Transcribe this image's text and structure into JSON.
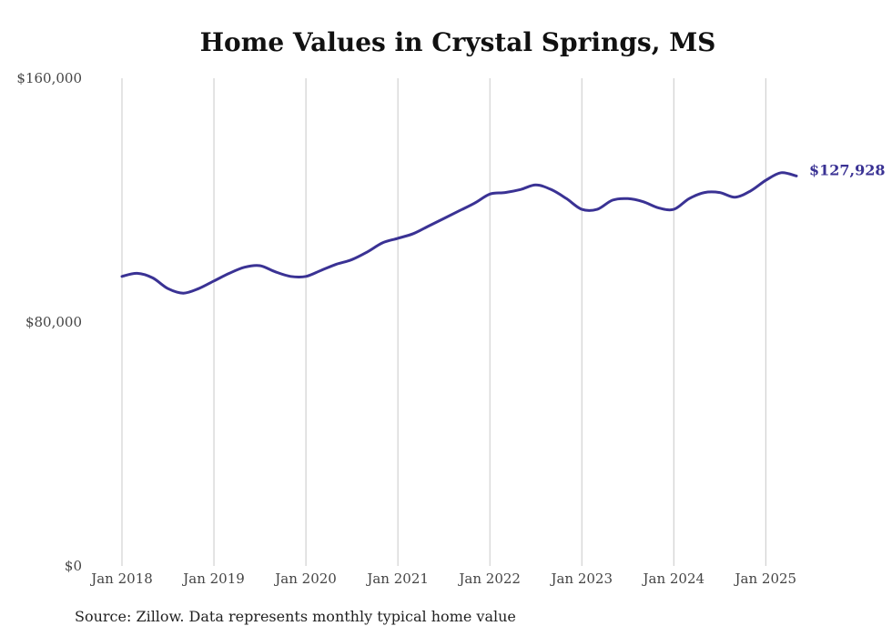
{
  "chart_data": {
    "type": "line",
    "title": "Home Values in Crystal Springs, MS",
    "xlabel": "",
    "ylabel": "",
    "ylim": [
      0,
      160000
    ],
    "y_ticks": [
      {
        "value": 0,
        "label": "$0"
      },
      {
        "value": 80000,
        "label": "$80,000"
      },
      {
        "value": 160000,
        "label": "$160,000"
      }
    ],
    "x_ticks": [
      {
        "value": 2018,
        "label": "Jan 2018"
      },
      {
        "value": 2019,
        "label": "Jan 2019"
      },
      {
        "value": 2020,
        "label": "Jan 2020"
      },
      {
        "value": 2021,
        "label": "Jan 2021"
      },
      {
        "value": 2022,
        "label": "Jan 2022"
      },
      {
        "value": 2023,
        "label": "Jan 2023"
      },
      {
        "value": 2024,
        "label": "Jan 2024"
      },
      {
        "value": 2025,
        "label": "Jan 2025"
      }
    ],
    "x_grid": true,
    "y_grid": false,
    "line_color": "#3a3294",
    "end_label": "$127,928",
    "series": [
      {
        "x": [
          "2018-01",
          "2018-03",
          "2018-05",
          "2018-07",
          "2018-09",
          "2018-11",
          "2019-01",
          "2019-03",
          "2019-05",
          "2019-07",
          "2019-09",
          "2019-11",
          "2020-01",
          "2020-03",
          "2020-05",
          "2020-07",
          "2020-09",
          "2020-11",
          "2021-01",
          "2021-03",
          "2021-05",
          "2021-07",
          "2021-09",
          "2021-11",
          "2022-01",
          "2022-03",
          "2022-05",
          "2022-07",
          "2022-09",
          "2022-11",
          "2023-01",
          "2023-03",
          "2023-05",
          "2023-07",
          "2023-09",
          "2023-11",
          "2024-01",
          "2024-03",
          "2024-05",
          "2024-07",
          "2024-09",
          "2024-11",
          "2025-01",
          "2025-03",
          "2025-05"
        ],
        "values": [
          95000,
          96000,
          94500,
          91000,
          89500,
          91000,
          93500,
          96000,
          98000,
          98500,
          96500,
          95000,
          95000,
          97000,
          99000,
          100500,
          103000,
          106000,
          107500,
          109000,
          111500,
          114000,
          116500,
          119000,
          122000,
          122500,
          123500,
          125000,
          123500,
          120500,
          117000,
          117000,
          120000,
          120500,
          119500,
          117500,
          117000,
          120500,
          122500,
          122500,
          121000,
          123000,
          126500,
          129000,
          127928
        ]
      }
    ]
  },
  "source_note": "Source: Zillow. Data represents monthly typical home value"
}
